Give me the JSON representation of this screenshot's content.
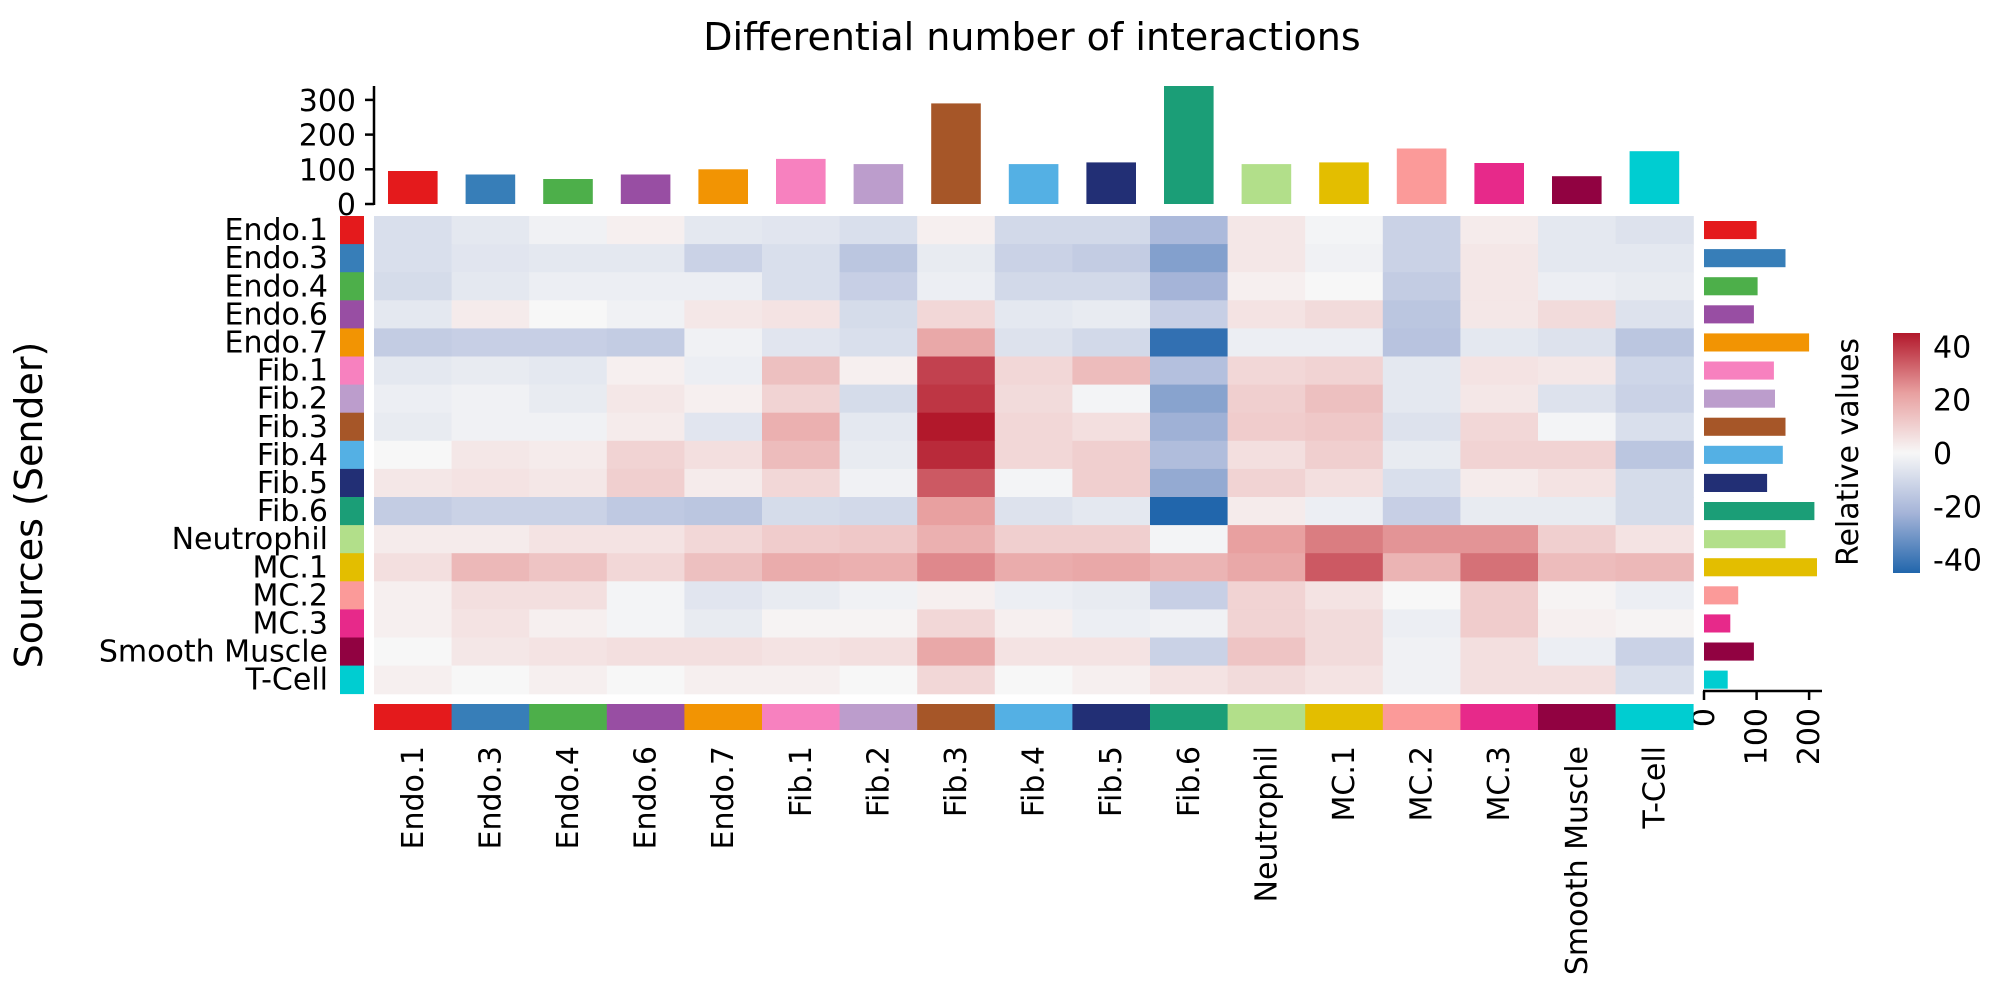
{
  "chart_data": {
    "type": "heatmap",
    "title": "Differential number of interactions",
    "ylabel": "Sources (Sender)",
    "colorbar_label": "Relative values",
    "colorbar_range": [
      -45,
      45
    ],
    "colorbar_ticks": [
      "40",
      "20",
      "0",
      "-20",
      "-40"
    ],
    "colorbar_tick_values": [
      40,
      20,
      0,
      -20,
      -40
    ],
    "top_bar_ticks": [
      "300",
      "200",
      "100",
      "0"
    ],
    "top_bar_tick_values": [
      300,
      200,
      100,
      0
    ],
    "top_bar_ylim": [
      0,
      340
    ],
    "right_bar_ticks": [
      "0",
      "100",
      "200"
    ],
    "right_bar_tick_values": [
      0,
      100,
      200
    ],
    "right_bar_xlim": [
      0,
      215
    ],
    "rows": [
      "Endo.1",
      "Endo.3",
      "Endo.4",
      "Endo.6",
      "Endo.7",
      "Fib.1",
      "Fib.2",
      "Fib.3",
      "Fib.4",
      "Fib.5",
      "Fib.6",
      "Neutrophil",
      "MC.1",
      "MC.2",
      "MC.3",
      "Smooth Muscle",
      "T-Cell"
    ],
    "columns": [
      "Endo.1",
      "Endo.3",
      "Endo.4",
      "Endo.6",
      "Endo.7",
      "Fib.1",
      "Fib.2",
      "Fib.3",
      "Fib.4",
      "Fib.5",
      "Fib.6",
      "Neutrophil",
      "MC.1",
      "MC.2",
      "MC.3",
      "Smooth Muscle",
      "T-Cell"
    ],
    "group_colors": [
      "#E41A1C",
      "#377EB8",
      "#4DAF4A",
      "#984EA3",
      "#F29403",
      "#F781BF",
      "#BC9DCC",
      "#A65628",
      "#54B0E4",
      "#222F75",
      "#1B9E77",
      "#B2DF8A",
      "#E3BE00",
      "#FB9A99",
      "#E7298A",
      "#910241",
      "#00CDD1"
    ],
    "column_totals": [
      95,
      85,
      72,
      85,
      100,
      130,
      115,
      290,
      115,
      120,
      340,
      115,
      120,
      160,
      118,
      80,
      152
    ],
    "row_totals": [
      100,
      155,
      102,
      95,
      200,
      133,
      135,
      155,
      150,
      120,
      210,
      155,
      215,
      65,
      50,
      95,
      45
    ],
    "values": [
      [
        -8,
        -5,
        -2,
        2,
        -5,
        -6,
        -8,
        2,
        -10,
        -10,
        -20,
        4,
        -1,
        -12,
        3,
        -5,
        -7
      ],
      [
        -8,
        -6,
        -5,
        -5,
        -12,
        -8,
        -16,
        -4,
        -12,
        -14,
        -28,
        4,
        -2,
        -12,
        4,
        -5,
        -5
      ],
      [
        -9,
        -5,
        -3,
        -3,
        -3,
        -8,
        -13,
        -3,
        -10,
        -10,
        -22,
        2,
        0,
        -14,
        4,
        -3,
        -4
      ],
      [
        -5,
        3,
        0,
        -2,
        4,
        5,
        -9,
        8,
        -5,
        -4,
        -13,
        5,
        7,
        -16,
        4,
        7,
        -7
      ],
      [
        -14,
        -13,
        -13,
        -14,
        -2,
        -6,
        -8,
        20,
        -7,
        -10,
        -42,
        -3,
        -3,
        -17,
        -5,
        -7,
        -16
      ],
      [
        -5,
        -4,
        -5,
        2,
        -3,
        14,
        2,
        38,
        8,
        15,
        -18,
        8,
        9,
        -5,
        5,
        4,
        -11
      ],
      [
        -3,
        -2,
        -4,
        4,
        2,
        9,
        -9,
        40,
        7,
        -1,
        -27,
        10,
        14,
        -5,
        4,
        -7,
        -12
      ],
      [
        -4,
        -2,
        -2,
        3,
        -6,
        18,
        -5,
        45,
        8,
        6,
        -23,
        11,
        12,
        -7,
        8,
        -1,
        -8
      ],
      [
        0,
        4,
        3,
        9,
        6,
        15,
        -4,
        42,
        8,
        10,
        -19,
        6,
        10,
        -4,
        9,
        9,
        -16
      ],
      [
        4,
        5,
        4,
        10,
        3,
        8,
        -2,
        34,
        -1,
        10,
        -25,
        9,
        6,
        -8,
        3,
        5,
        -9
      ],
      [
        -14,
        -12,
        -12,
        -15,
        -16,
        -9,
        -10,
        22,
        -7,
        -5,
        -45,
        3,
        -3,
        -13,
        -4,
        -4,
        -9
      ],
      [
        3,
        3,
        5,
        5,
        8,
        11,
        12,
        18,
        10,
        10,
        -1,
        22,
        28,
        24,
        24,
        10,
        5
      ],
      [
        6,
        16,
        13,
        8,
        14,
        19,
        18,
        26,
        19,
        20,
        17,
        20,
        34,
        17,
        30,
        15,
        16
      ],
      [
        2,
        6,
        6,
        -1,
        -6,
        -4,
        -2,
        2,
        -3,
        -4,
        -13,
        9,
        5,
        0,
        11,
        1,
        -3
      ],
      [
        2,
        5,
        2,
        -1,
        -4,
        1,
        1,
        8,
        2,
        -3,
        -2,
        9,
        7,
        -3,
        11,
        2,
        1
      ],
      [
        0,
        4,
        5,
        6,
        6,
        5,
        6,
        20,
        5,
        5,
        -12,
        13,
        7,
        -2,
        6,
        -3,
        -12
      ],
      [
        2,
        0,
        2,
        0,
        2,
        2,
        0,
        8,
        0,
        2,
        5,
        7,
        5,
        -2,
        6,
        6,
        -8
      ]
    ]
  }
}
